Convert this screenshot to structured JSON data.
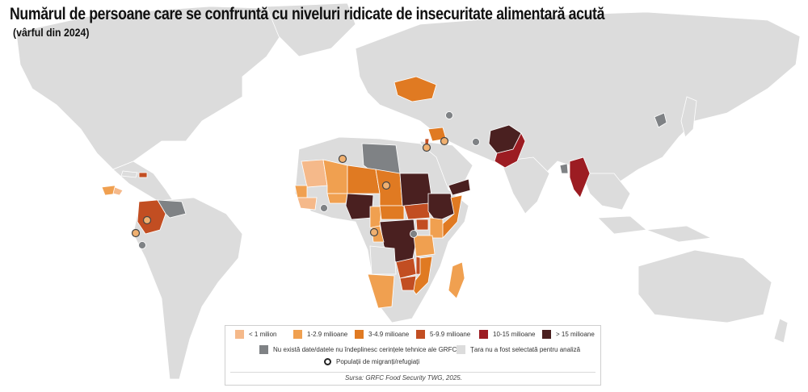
{
  "title": "Numărul de persoane care se confruntă cu niveluri ridicate de insecuritate alimentară acută",
  "subtitle": "(vârful din 2024)",
  "colors": {
    "ocean": "#ffffff",
    "land_not_selected": "#dcdcdc",
    "no_data": "#7f8285",
    "lt1": "#f5b98a",
    "m1_2_9": "#f0a050",
    "m3_4_9": "#e07a22",
    "m5_9_9": "#c24e22",
    "m10_15": "#9c1c22",
    "gt15": "#4a2020",
    "border": "#ffffff"
  },
  "legend": {
    "categories": [
      {
        "label": "< 1 milion",
        "color": "#f5b98a"
      },
      {
        "label": "1-2.9 milioane",
        "color": "#f0a050"
      },
      {
        "label": "3-4.9 milioane",
        "color": "#e07a22"
      },
      {
        "label": "5-9.9 milioane",
        "color": "#c24e22"
      },
      {
        "label": "10-15 milioane",
        "color": "#9c1c22"
      },
      {
        "label": "> 15 milioane",
        "color": "#4a2020"
      }
    ],
    "no_data": {
      "label": "Nu există date/datele nu îndeplinesc cerințele tehnice ale GRFC",
      "color": "#7f8285"
    },
    "not_selected": {
      "label": "Țara nu a fost selectată pentru analiză",
      "color": "#dcdcdc"
    },
    "refugees": {
      "label": "Populații de migranți/refugiați"
    },
    "source": "Sursa: GRFC Food Security TWG, 2025."
  }
}
